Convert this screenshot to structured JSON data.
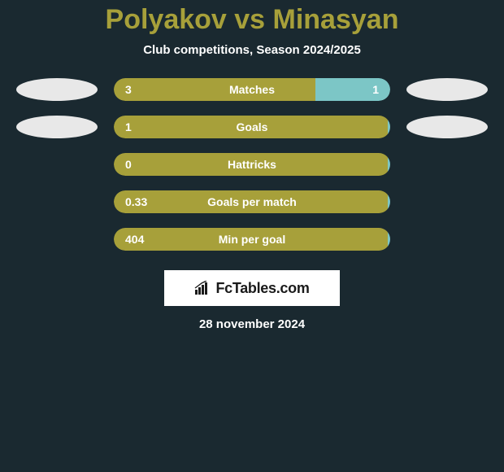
{
  "background_color": "#1a2930",
  "title": "Polyakov vs Minasyan",
  "title_color": "#a7a03a",
  "subtitle": "Club competitions, Season 2024/2025",
  "date": "28 november 2024",
  "brand": "FcTables.com",
  "avatar": {
    "left_row1_color": "#e8e8e8",
    "right_row1_color": "#e8e8e8",
    "left_row2_color": "#e8e8e8",
    "right_row2_color": "#e8e8e8"
  },
  "bars": [
    {
      "label": "Matches",
      "left_value": "3",
      "right_value": "1",
      "left_pct": 73,
      "right_pct": 27,
      "left_color": "#a7a03a",
      "right_color": "#7cc6c6",
      "show_left_avatar": true,
      "show_right_avatar": true,
      "show_right_value": true,
      "avatar_left_color": "#e8e8e8",
      "avatar_right_color": "#e8e8e8"
    },
    {
      "label": "Goals",
      "left_value": "1",
      "right_value": "",
      "left_pct": 99,
      "right_pct": 1,
      "left_color": "#a7a03a",
      "right_color": "#7cc6c6",
      "show_left_avatar": true,
      "show_right_avatar": true,
      "show_right_value": false,
      "avatar_left_color": "#e8e8e8",
      "avatar_right_color": "#e8e8e8"
    },
    {
      "label": "Hattricks",
      "left_value": "0",
      "right_value": "",
      "left_pct": 99,
      "right_pct": 1,
      "left_color": "#a7a03a",
      "right_color": "#7cc6c6",
      "show_left_avatar": false,
      "show_right_avatar": false,
      "show_right_value": false
    },
    {
      "label": "Goals per match",
      "left_value": "0.33",
      "right_value": "",
      "left_pct": 99,
      "right_pct": 1,
      "left_color": "#a7a03a",
      "right_color": "#7cc6c6",
      "show_left_avatar": false,
      "show_right_avatar": false,
      "show_right_value": false
    },
    {
      "label": "Min per goal",
      "left_value": "404",
      "right_value": "",
      "left_pct": 99,
      "right_pct": 1,
      "left_color": "#a7a03a",
      "right_color": "#7cc6c6",
      "show_left_avatar": false,
      "show_right_avatar": false,
      "show_right_value": false
    }
  ]
}
